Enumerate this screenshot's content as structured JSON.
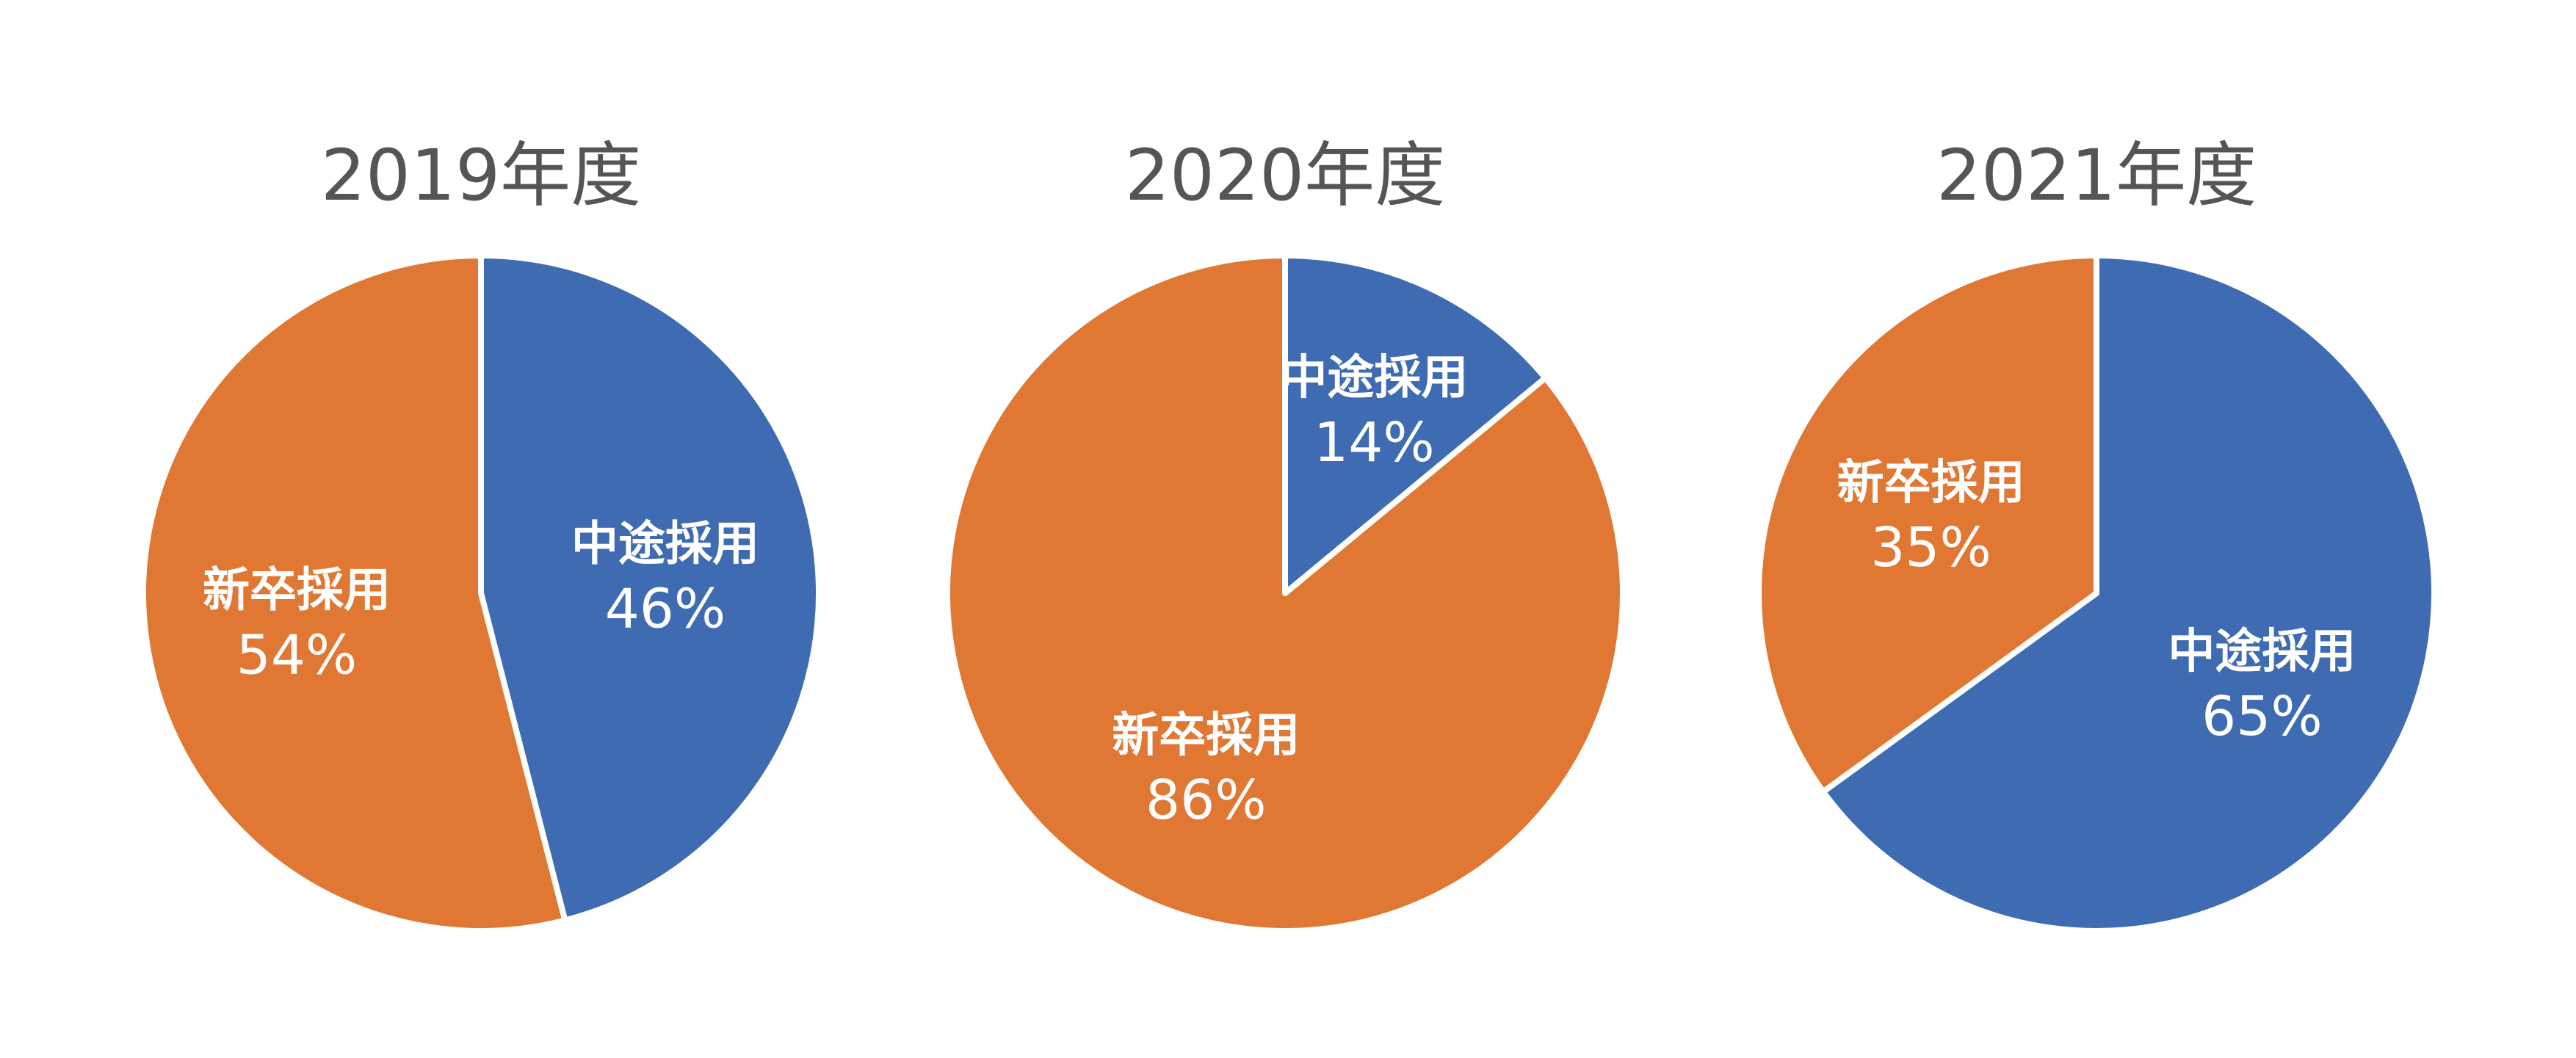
{
  "colors": {
    "mid_career": "#3E6BB1",
    "new_grad": "#E07834",
    "title": "#555555",
    "label_text": "#FFFFFF"
  },
  "chart_data": [
    {
      "type": "pie",
      "title": "2019年度",
      "start": "12 o'clock, clockwise",
      "slices": [
        {
          "label": "中途採用",
          "value": 46,
          "pct_label": "46%",
          "color_key": "mid_career"
        },
        {
          "label": "新卒採用",
          "value": 54,
          "pct_label": "54%",
          "color_key": "new_grad"
        }
      ]
    },
    {
      "type": "pie",
      "title": "2020年度",
      "start": "12 o'clock, clockwise",
      "slices": [
        {
          "label": "中途採用",
          "value": 14,
          "pct_label": "14%",
          "color_key": "mid_career"
        },
        {
          "label": "新卒採用",
          "value": 86,
          "pct_label": "86%",
          "color_key": "new_grad"
        }
      ]
    },
    {
      "type": "pie",
      "title": "2021年度",
      "start": "12 o'clock, clockwise",
      "slices": [
        {
          "label": "中途採用",
          "value": 65,
          "pct_label": "65%",
          "color_key": "mid_career"
        },
        {
          "label": "新卒採用",
          "value": 35,
          "pct_label": "35%",
          "color_key": "new_grad"
        }
      ]
    }
  ]
}
